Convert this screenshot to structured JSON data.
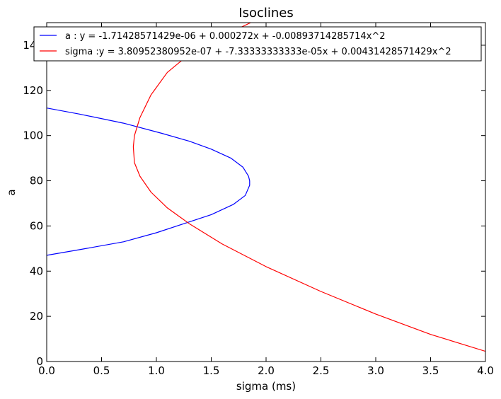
{
  "chart_data": {
    "type": "line",
    "title": "Isoclines",
    "xlabel": "sigma (ms)",
    "ylabel": "a",
    "xlim": [
      0.0,
      4.0
    ],
    "ylim": [
      0,
      150
    ],
    "x_ticks": [
      "0.0",
      "0.5",
      "1.0",
      "1.5",
      "2.0",
      "2.5",
      "3.0",
      "3.5",
      "4.0"
    ],
    "x_tick_values": [
      0.0,
      0.5,
      1.0,
      1.5,
      2.0,
      2.5,
      3.0,
      3.5,
      4.0
    ],
    "y_ticks": [
      "0",
      "20",
      "40",
      "60",
      "80",
      "100",
      "120",
      "140"
    ],
    "y_tick_values": [
      0,
      20,
      40,
      60,
      80,
      100,
      120,
      140
    ],
    "grid": false,
    "legend_position": "top",
    "series": [
      {
        "name": "a : y = -1.71428571429e-06 + 0.000272x + -0.00893714285714x^2",
        "color": "#0000ff",
        "x": [
          0.0,
          0.3,
          0.7,
          1.05,
          1.3,
          1.5,
          1.68,
          1.79,
          1.84,
          1.85,
          1.85,
          1.81,
          1.7,
          1.5,
          1.25,
          1.0,
          0.7,
          0.3,
          0.0
        ],
        "y": [
          112.2,
          109.5,
          105.5,
          101.0,
          97.5,
          94.0,
          90.0,
          86.0,
          82.0,
          80.0,
          78.0,
          73.5,
          69.5,
          65.0,
          61.0,
          57.0,
          53.0,
          49.5,
          47.0
        ]
      },
      {
        "name": "sigma :y = 3.80952380952e-07 + -7.33333333333e-05x + 0.00431428571429x^2",
        "color": "#ff0000",
        "x": [
          1.86,
          1.6,
          1.3,
          1.1,
          0.95,
          0.85,
          0.8,
          0.79,
          0.8,
          0.85,
          0.95,
          1.1,
          1.3,
          1.6,
          2.0,
          2.5,
          3.0,
          3.5,
          4.0
        ],
        "y": [
          150.0,
          144.0,
          136.0,
          128.0,
          118.0,
          108.0,
          100.0,
          95.0,
          88.0,
          82.0,
          75.0,
          68.0,
          61.0,
          52.0,
          42.0,
          31.0,
          21.0,
          12.0,
          4.5
        ]
      }
    ]
  }
}
